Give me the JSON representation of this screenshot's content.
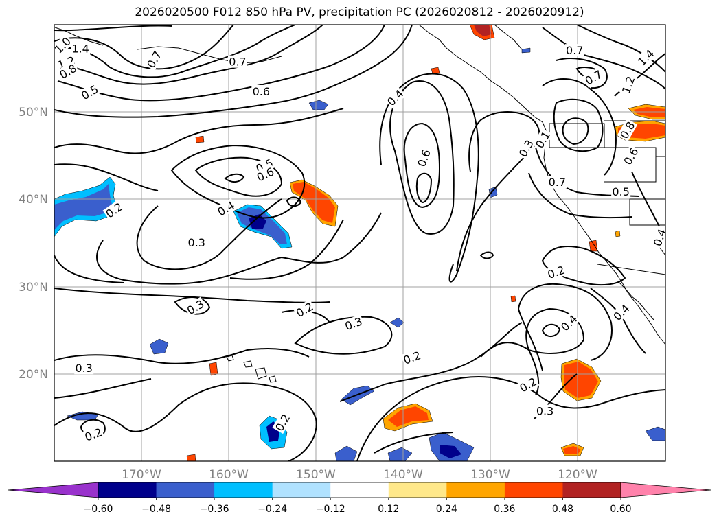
{
  "title": "2026020500 F012 850 hPa PV, precipitation PC (2026020812 - 2026020912)",
  "map": {
    "projection": "PlateCarree",
    "lon_range": [
      -180,
      -110
    ],
    "lat_range": [
      10,
      60
    ],
    "gridlines": true,
    "lat_ticks": [
      {
        "lat": 20,
        "label": "20°N"
      },
      {
        "lat": 30,
        "label": "30°N"
      },
      {
        "lat": 40,
        "label": "40°N"
      },
      {
        "lat": 50,
        "label": "50°N"
      }
    ],
    "lon_ticks": [
      {
        "lon": -170,
        "label": "170°W"
      },
      {
        "lon": -160,
        "label": "160°W"
      },
      {
        "lon": -150,
        "label": "150°W"
      },
      {
        "lon": -140,
        "label": "140°W"
      },
      {
        "lon": -130,
        "label": "130°W"
      },
      {
        "lon": -120,
        "label": "120°W"
      }
    ]
  },
  "contour_labels": [
    {
      "text": "1.4",
      "lon": -177.0,
      "lat": 57.2,
      "rot": 0
    },
    {
      "text": "1.2",
      "lon": -178.6,
      "lat": 55.6,
      "rot": -20
    },
    {
      "text": "1.0",
      "lon": -179.0,
      "lat": 57.6,
      "rot": -45
    },
    {
      "text": "0.8",
      "lon": -178.4,
      "lat": 54.6,
      "rot": -30
    },
    {
      "text": "0.5",
      "lon": -175.9,
      "lat": 52.2,
      "rot": -30
    },
    {
      "text": "0.7",
      "lon": -168.5,
      "lat": 56.0,
      "rot": -60
    },
    {
      "text": "0.7",
      "lon": -159.0,
      "lat": 55.7,
      "rot": 0
    },
    {
      "text": "0.6",
      "lon": -156.3,
      "lat": 52.3,
      "rot": 0
    },
    {
      "text": "0.5",
      "lon": -155.9,
      "lat": 43.8,
      "rot": -25
    },
    {
      "text": "0.6",
      "lon": -155.8,
      "lat": 42.8,
      "rot": -25
    },
    {
      "text": "0.4",
      "lon": -160.3,
      "lat": 38.9,
      "rot": -30
    },
    {
      "text": "0.2",
      "lon": -173.1,
      "lat": 38.7,
      "rot": -35
    },
    {
      "text": "0.3",
      "lon": -163.7,
      "lat": 35.0,
      "rot": 0
    },
    {
      "text": "0.3",
      "lon": -163.8,
      "lat": 27.6,
      "rot": -30
    },
    {
      "text": "0.2",
      "lon": -151.3,
      "lat": 27.3,
      "rot": -30
    },
    {
      "text": "0.3",
      "lon": -145.7,
      "lat": 25.7,
      "rot": -20
    },
    {
      "text": "0.2",
      "lon": -139.0,
      "lat": 21.8,
      "rot": -20
    },
    {
      "text": "0.3",
      "lon": -176.6,
      "lat": 20.6,
      "rot": 0
    },
    {
      "text": "0.2",
      "lon": -175.5,
      "lat": 13.0,
      "rot": -20
    },
    {
      "text": "0.2",
      "lon": -153.8,
      "lat": 14.4,
      "rot": -60
    },
    {
      "text": "0.4",
      "lon": -140.9,
      "lat": 51.6,
      "rot": -45
    },
    {
      "text": "0.6",
      "lon": -137.6,
      "lat": 44.7,
      "rot": -70
    },
    {
      "text": "0.3",
      "lon": -125.9,
      "lat": 45.8,
      "rot": -60
    },
    {
      "text": "0.1",
      "lon": -124.0,
      "lat": 46.8,
      "rot": -60
    },
    {
      "text": "0.7",
      "lon": -120.4,
      "lat": 57.0,
      "rot": 0
    },
    {
      "text": "0.7",
      "lon": -118.2,
      "lat": 53.9,
      "rot": -30
    },
    {
      "text": "1.2",
      "lon": -114.2,
      "lat": 53.1,
      "rot": -70
    },
    {
      "text": "1.4",
      "lon": -112.2,
      "lat": 56.2,
      "rot": -45
    },
    {
      "text": "0.8",
      "lon": -114.3,
      "lat": 47.9,
      "rot": -60
    },
    {
      "text": "0.6",
      "lon": -113.9,
      "lat": 44.9,
      "rot": -60
    },
    {
      "text": "0.7",
      "lon": -122.4,
      "lat": 41.9,
      "rot": 0
    },
    {
      "text": "0.5",
      "lon": -115.1,
      "lat": 40.8,
      "rot": 0
    },
    {
      "text": "0.4",
      "lon": -110.6,
      "lat": 35.6,
      "rot": -70
    },
    {
      "text": "0.2",
      "lon": -122.5,
      "lat": 31.6,
      "rot": -20
    },
    {
      "text": "0.4",
      "lon": -121.0,
      "lat": 25.8,
      "rot": -45
    },
    {
      "text": "0.4",
      "lon": -115.0,
      "lat": 27.0,
      "rot": -45
    },
    {
      "text": "0.2",
      "lon": -125.7,
      "lat": 18.7,
      "rot": -30
    },
    {
      "text": "0.3",
      "lon": -123.8,
      "lat": 15.7,
      "rot": 0
    }
  ],
  "colorbar": {
    "ticks": [
      "−0.60",
      "−0.48",
      "−0.36",
      "−0.24",
      "−0.12",
      "0.12",
      "0.24",
      "0.36",
      "0.48",
      "0.60"
    ],
    "colors": [
      "#9932cc",
      "#00008b",
      "#3a5fcd",
      "#00bfff",
      "#b0e2ff",
      "#ffffff",
      "#ffe88a",
      "#ffa500",
      "#ff4500",
      "#b22222",
      "#ff82ab"
    ],
    "extend": "both"
  }
}
